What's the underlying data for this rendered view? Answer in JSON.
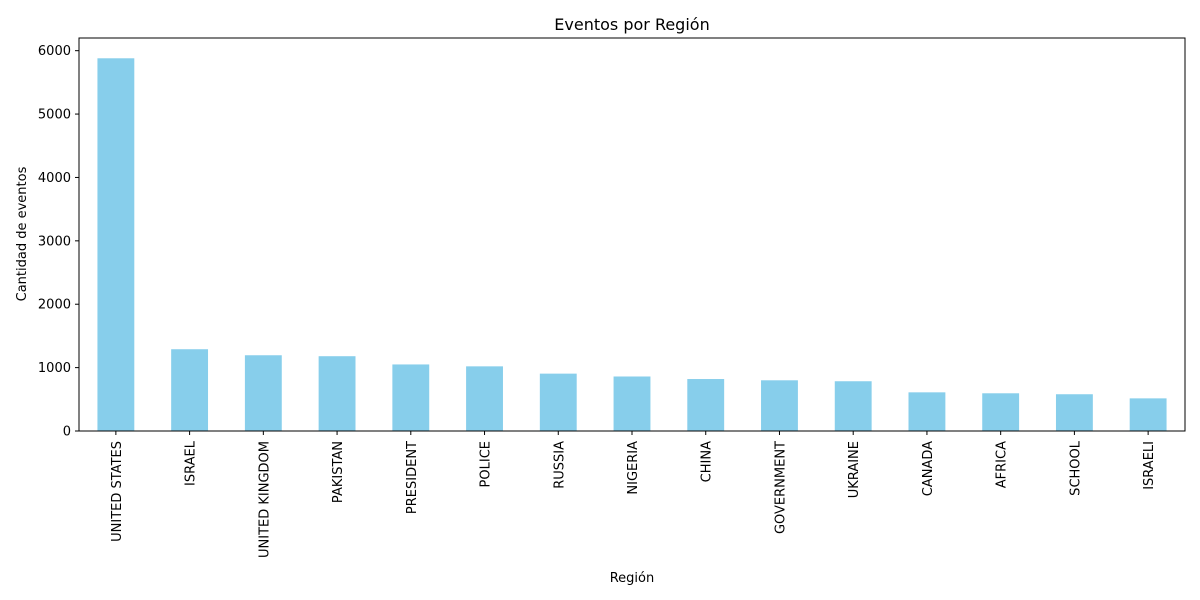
{
  "chart_data": {
    "type": "bar",
    "title": "Eventos por Región",
    "xlabel": "Región",
    "ylabel": "Cantidad de eventos",
    "categories": [
      "UNITED STATES",
      "ISRAEL",
      "UNITED KINGDOM",
      "PAKISTAN",
      "PRESIDENT",
      "POLICE",
      "RUSSIA",
      "NIGERIA",
      "CHINA",
      "GOVERNMENT",
      "UKRAINE",
      "CANADA",
      "AFRICA",
      "SCHOOL",
      "ISRAELI"
    ],
    "values": [
      5880,
      1290,
      1195,
      1180,
      1050,
      1020,
      905,
      860,
      820,
      800,
      785,
      610,
      595,
      580,
      515
    ],
    "ylim": [
      0,
      6200
    ],
    "yticks": [
      0,
      1000,
      2000,
      3000,
      4000,
      5000,
      6000
    ],
    "bar_color": "#87ceeb",
    "grid": false,
    "legend": false
  }
}
